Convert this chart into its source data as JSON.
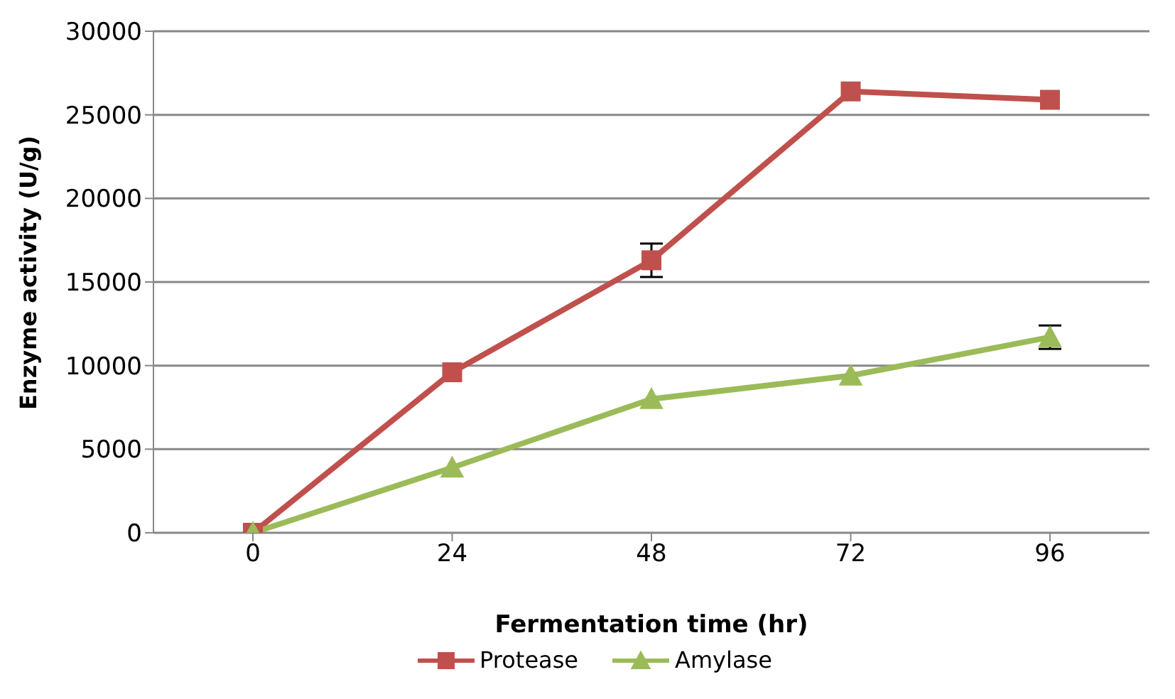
{
  "chart_data": {
    "type": "line",
    "xlabel": "Fermentation time (hr)",
    "ylabel": "Enzyme activity (U/g)",
    "categories": [
      "0",
      "24",
      "48",
      "72",
      "96"
    ],
    "series": [
      {
        "name": "Protease",
        "color": "#c0504d",
        "marker": "square",
        "values": [
          0,
          9600,
          16300,
          26400,
          25900
        ],
        "errors": [
          null,
          null,
          1000,
          null,
          null
        ]
      },
      {
        "name": "Amylase",
        "color": "#9bbb59",
        "marker": "triangle",
        "values": [
          0,
          3900,
          8000,
          9400,
          11700
        ],
        "errors": [
          null,
          null,
          null,
          null,
          700
        ]
      }
    ],
    "ylim": [
      0,
      30000
    ],
    "yticks": [
      0,
      5000,
      10000,
      15000,
      20000,
      25000,
      30000
    ],
    "grid": "y",
    "legend": "bottom"
  }
}
